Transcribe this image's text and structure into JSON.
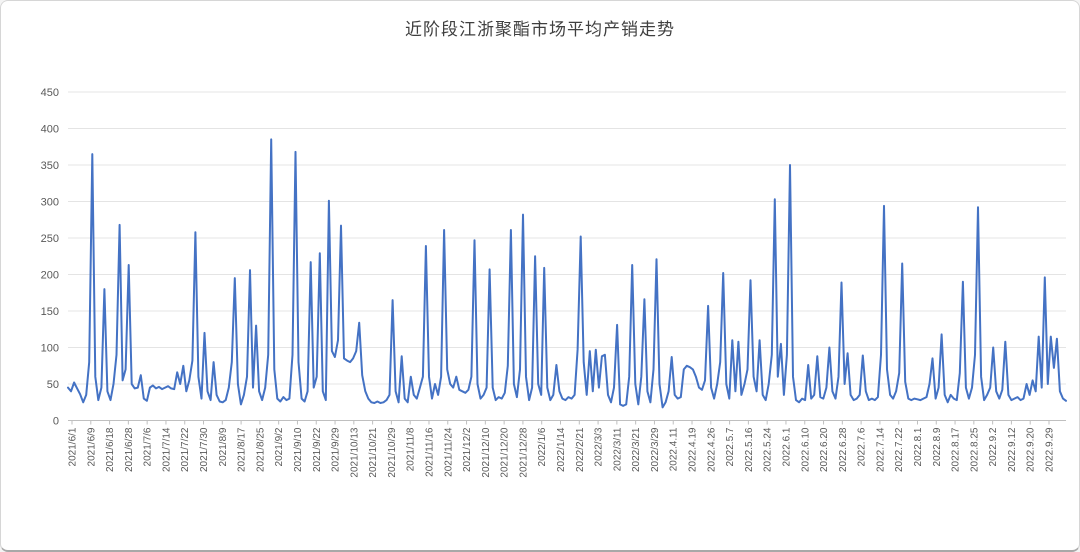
{
  "colors": {
    "line": "#4472C4",
    "gridline": "#e4e4e4",
    "axis_line": "#bfbfbf",
    "tick_label": "#595959",
    "title": "#3f3f3f",
    "background": "#ffffff"
  },
  "chart_data": {
    "type": "line",
    "title": "近阶段江浙聚酯市场平均产销走势",
    "xlabel": "",
    "ylabel": "",
    "ylim": [
      0,
      450
    ],
    "yticks": [
      0,
      50,
      100,
      150,
      200,
      250,
      300,
      350,
      400,
      450
    ],
    "grid": "horizontal",
    "legend": "none",
    "x_labels": [
      "2021/6/1",
      "2021/6/9",
      "2021/6/18",
      "2021/6/28",
      "2021/7/6",
      "2021/7/14",
      "2021/7/22",
      "2021/7/30",
      "2021/8/9",
      "2021/8/17",
      "2021/8/25",
      "2021/9/2",
      "2021/9/10",
      "2021/9/22",
      "2021/9/29",
      "2021/10/13",
      "2021/10/21",
      "2021/10/29",
      "2021/11/8",
      "2021/11/16",
      "2021/11/24",
      "2021/12/2",
      "2021/12/10",
      "2021/12/20",
      "2021/12/28",
      "2022/1/6",
      "2022/1/14",
      "2022/2/21",
      "2022/3/3",
      "2022/3/11",
      "2022/3/21",
      "2022/3/29",
      "2022.4.11",
      "2022.4.19",
      "2022.4.26",
      "2022.5.7",
      "2022.5.16",
      "2022.5.24",
      "2022.6.1",
      "2022.6.10",
      "2022.6.20",
      "2022.6.28",
      "2022.7.6",
      "2022.7.14",
      "2022.7.22",
      "2022.8.1",
      "2022.8.9",
      "2022.8.17",
      "2022.8.25",
      "2022.9.2",
      "2022.9.12",
      "2022.9.20",
      "2022.9.29"
    ],
    "values": [
      45,
      40,
      52,
      44,
      36,
      25,
      35,
      80,
      365,
      60,
      28,
      45,
      180,
      40,
      28,
      50,
      90,
      268,
      55,
      70,
      213,
      50,
      44,
      45,
      62,
      30,
      27,
      45,
      48,
      44,
      46,
      43,
      45,
      47,
      44,
      43,
      66,
      50,
      75,
      40,
      55,
      82,
      258,
      60,
      30,
      120,
      40,
      28,
      80,
      35,
      26,
      25,
      28,
      45,
      80,
      195,
      50,
      22,
      35,
      60,
      206,
      45,
      130,
      40,
      28,
      45,
      90,
      385,
      70,
      30,
      26,
      32,
      28,
      30,
      90,
      368,
      80,
      30,
      26,
      40,
      217,
      45,
      60,
      229,
      40,
      28,
      301,
      95,
      87,
      110,
      267,
      85,
      82,
      80,
      85,
      95,
      134,
      62,
      40,
      30,
      25,
      24,
      26,
      24,
      25,
      28,
      35,
      165,
      40,
      25,
      88,
      30,
      25,
      60,
      35,
      30,
      45,
      60,
      239,
      60,
      30,
      50,
      35,
      60,
      261,
      70,
      50,
      45,
      60,
      42,
      40,
      38,
      42,
      60,
      247,
      50,
      30,
      35,
      45,
      207,
      45,
      28,
      32,
      30,
      38,
      75,
      261,
      50,
      32,
      70,
      282,
      60,
      28,
      45,
      225,
      50,
      35,
      209,
      45,
      28,
      35,
      76,
      40,
      30,
      28,
      32,
      30,
      35,
      97,
      252,
      80,
      35,
      95,
      40,
      97,
      45,
      88,
      90,
      35,
      25,
      45,
      131,
      22,
      20,
      22,
      60,
      213,
      50,
      22,
      60,
      166,
      40,
      25,
      70,
      221,
      50,
      18,
      25,
      40,
      87,
      35,
      30,
      32,
      70,
      75,
      73,
      70,
      60,
      45,
      42,
      55,
      157,
      45,
      30,
      50,
      80,
      202,
      50,
      30,
      110,
      40,
      108,
      35,
      50,
      70,
      192,
      60,
      40,
      110,
      35,
      28,
      50,
      90,
      303,
      60,
      105,
      35,
      90,
      350,
      60,
      28,
      25,
      30,
      28,
      76,
      30,
      35,
      88,
      32,
      30,
      45,
      100,
      40,
      30,
      60,
      189,
      50,
      92,
      35,
      28,
      30,
      35,
      89,
      40,
      28,
      30,
      28,
      32,
      90,
      294,
      70,
      35,
      30,
      40,
      65,
      215,
      53,
      30,
      28,
      30,
      29,
      28,
      30,
      32,
      50,
      85,
      30,
      45,
      118,
      35,
      25,
      35,
      30,
      28,
      65,
      190,
      45,
      30,
      45,
      90,
      292,
      60,
      28,
      35,
      45,
      100,
      40,
      30,
      42,
      108,
      35,
      28,
      30,
      32,
      28,
      30,
      50,
      35,
      55,
      40,
      115,
      45,
      196,
      50,
      115,
      72,
      112,
      40,
      30,
      27
    ]
  }
}
